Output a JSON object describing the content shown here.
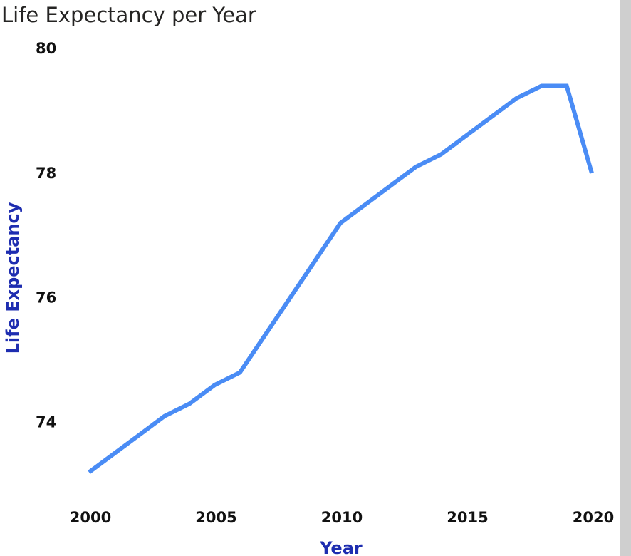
{
  "colors": {
    "line": "#4a8cf5",
    "axis_title": "#1e2db0"
  },
  "chart_data": {
    "type": "line",
    "title": "Life Expectancy per Year",
    "xlabel": "Year",
    "ylabel": "Life Expectancy",
    "x": [
      2000,
      2001,
      2002,
      2003,
      2004,
      2005,
      2006,
      2007,
      2008,
      2009,
      2010,
      2011,
      2012,
      2013,
      2014,
      2015,
      2016,
      2017,
      2018,
      2019,
      2020
    ],
    "series": [
      {
        "name": "Life Expectancy",
        "values": [
          73.2,
          73.5,
          73.8,
          74.1,
          74.3,
          74.6,
          74.8,
          75.4,
          76.0,
          76.6,
          77.2,
          77.5,
          77.8,
          78.1,
          78.3,
          78.6,
          78.9,
          79.2,
          79.4,
          79.4,
          78.0
        ]
      }
    ],
    "x_ticks": [
      2000,
      2005,
      2010,
      2015,
      2020
    ],
    "y_ticks": [
      74,
      76,
      78,
      80
    ],
    "xlim": [
      2000,
      2020
    ],
    "ylim": [
      73.0,
      80.0
    ],
    "grid": false
  }
}
